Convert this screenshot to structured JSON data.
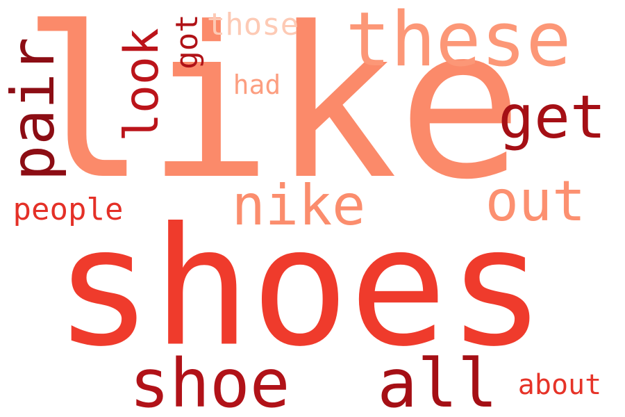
{
  "words": {
    "like": {
      "text": "like",
      "color": "#fb8a6a"
    },
    "shoes": {
      "text": "shoes",
      "color": "#ef3b2c"
    },
    "these": {
      "text": "these",
      "color": "#fc9777"
    },
    "get": {
      "text": "get",
      "color": "#a50f15"
    },
    "out": {
      "text": "out",
      "color": "#fc9070"
    },
    "nike": {
      "text": "nike",
      "color": "#fb8d6d"
    },
    "shoe": {
      "text": "shoe",
      "color": "#b11218"
    },
    "all": {
      "text": "all",
      "color": "#a50f15"
    },
    "people": {
      "text": "people",
      "color": "#e43027"
    },
    "about": {
      "text": "about",
      "color": "#e63328"
    },
    "had": {
      "text": "had",
      "color": "#fc9e80"
    },
    "those": {
      "text": "those",
      "color": "#fdcab5"
    },
    "pair": {
      "text": "pair",
      "color": "#8c0d14"
    },
    "look": {
      "text": "look",
      "color": "#bb141a"
    },
    "got": {
      "text": "got",
      "color": "#b01217"
    }
  },
  "background": "#ffffff"
}
